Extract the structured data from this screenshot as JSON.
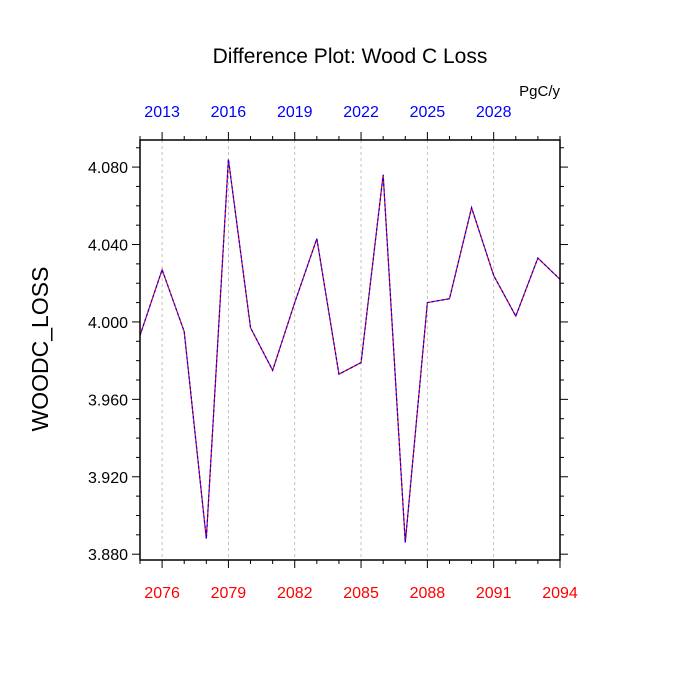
{
  "chart_data": {
    "type": "line",
    "title": "Difference Plot: Wood C Loss",
    "ylabel": "WOODC_LOSS",
    "units_label": "PgC/y",
    "xlim": [
      2075,
      2094
    ],
    "ylim": [
      3.877,
      4.094
    ],
    "grid": "vertical dashed at labeled x ticks",
    "x": [
      2075,
      2076,
      2077,
      2078,
      2079,
      2080,
      2081,
      2082,
      2083,
      2084,
      2085,
      2086,
      2087,
      2088,
      2089,
      2090,
      2091,
      2092,
      2093,
      2094
    ],
    "series": [
      {
        "values": [
          3.993,
          4.027,
          3.995,
          3.888,
          4.084,
          3.997,
          3.975,
          4.01,
          4.043,
          3.973,
          3.979,
          4.076,
          3.886,
          4.01,
          4.012,
          4.059,
          4.024,
          4.003,
          4.033,
          4.022
        ]
      }
    ],
    "bottom_axis": {
      "ticks": [
        2076,
        2079,
        2082,
        2085,
        2088,
        2091,
        2094
      ],
      "labels": [
        "2076",
        "2079",
        "2082",
        "2085",
        "2088",
        "2091",
        "2094"
      ],
      "color": "#ff0000"
    },
    "top_axis": {
      "ticks": [
        2076,
        2079,
        2082,
        2085,
        2088,
        2091
      ],
      "labels": [
        "2013",
        "2016",
        "2019",
        "2022",
        "2025",
        "2028"
      ],
      "color": "#0000ff"
    },
    "y_axis": {
      "ticks": [
        3.88,
        3.92,
        3.96,
        4.0,
        4.04,
        4.08
      ],
      "labels": [
        "3.880",
        "3.920",
        "3.960",
        "4.000",
        "4.040",
        "4.080"
      ]
    },
    "colors": {
      "line_primary": "#0000ff",
      "line_secondary": "#ff0000",
      "grid": "#b4b4b4"
    }
  }
}
